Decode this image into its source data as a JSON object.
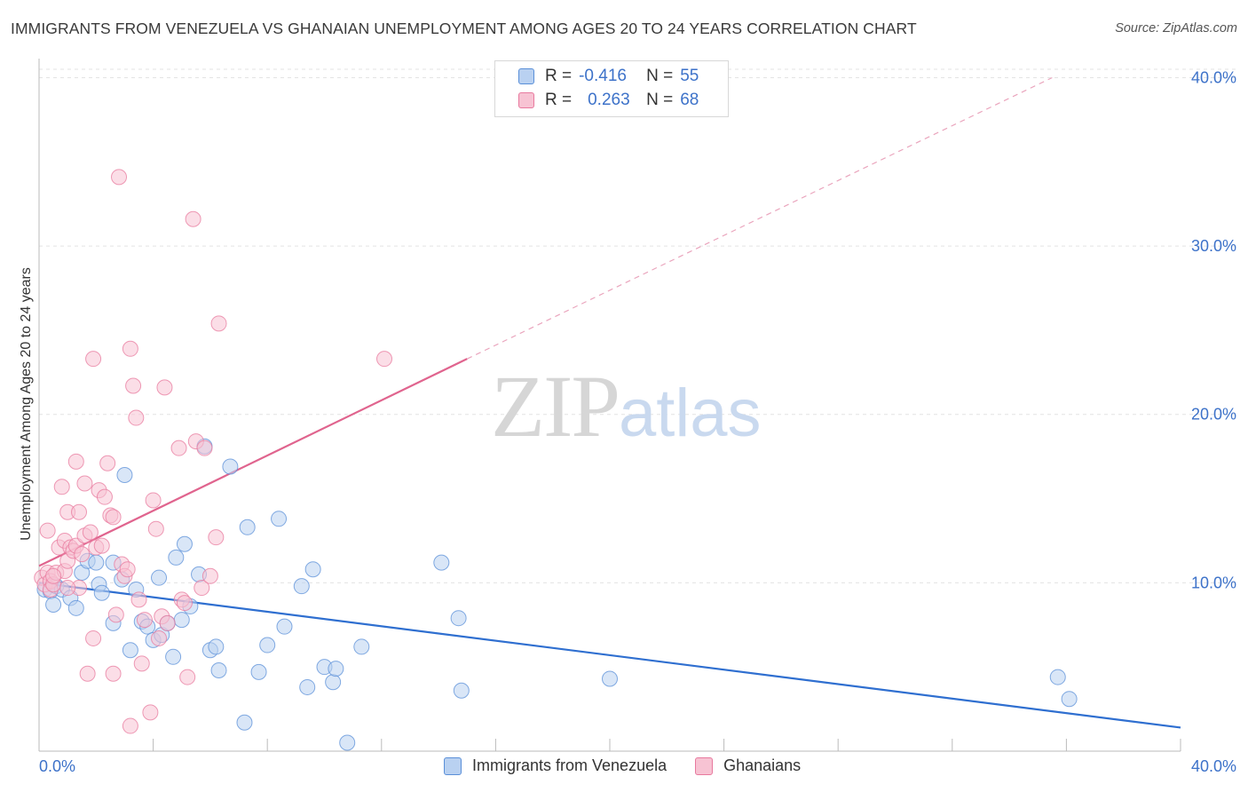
{
  "title": "IMMIGRANTS FROM VENEZUELA VS GHANAIAN UNEMPLOYMENT AMONG AGES 20 TO 24 YEARS CORRELATION CHART",
  "source": "Source: ZipAtlas.com",
  "watermark": {
    "zip": "ZIP",
    "atlas": "atlas"
  },
  "legend": {
    "rows": [
      {
        "r_label": "R =",
        "r_value": "-0.416",
        "n_label": "N =",
        "n_value": "55"
      },
      {
        "r_label": "R =",
        "r_value": "0.263",
        "n_label": "N =",
        "n_value": "68"
      }
    ]
  },
  "colors": {
    "blue": "#5a8fd8",
    "blue_fill": "#b9d1f1",
    "pink": "#e8799e",
    "pink_fill": "#f7c3d3",
    "blue_line": "#2f6fd0",
    "pink_line": "#e0648e",
    "tick_text": "#3d72c9"
  },
  "chart_data": {
    "type": "scatter",
    "title": "IMMIGRANTS FROM VENEZUELA VS GHANAIAN UNEMPLOYMENT AMONG AGES 20 TO 24 YEARS CORRELATION CHART",
    "xlabel": "",
    "ylabel": "Unemployment Among Ages 20 to 24 years",
    "xlim": [
      0,
      40
    ],
    "ylim": [
      0,
      40.5
    ],
    "x_tick_labels": [
      "0.0%",
      "40.0%"
    ],
    "y_tick_labels": [
      "10.0%",
      "20.0%",
      "30.0%",
      "40.0%"
    ],
    "y_ticks": [
      10,
      20,
      30,
      40
    ],
    "grid": true,
    "legend_position": "top-center",
    "series": [
      {
        "name": "Immigrants from Venezuela",
        "color": "#5a8fd8",
        "trend": {
          "x0": 0,
          "y0": 10.0,
          "x1": 40,
          "y1": 1.4
        },
        "points": [
          [
            0.2,
            9.6
          ],
          [
            0.4,
            9.5
          ],
          [
            0.5,
            8.7
          ],
          [
            0.6,
            9.8
          ],
          [
            0.8,
            9.6
          ],
          [
            1.1,
            9.1
          ],
          [
            1.3,
            8.5
          ],
          [
            1.5,
            10.6
          ],
          [
            1.7,
            11.3
          ],
          [
            2.0,
            11.2
          ],
          [
            2.1,
            9.9
          ],
          [
            2.2,
            9.4
          ],
          [
            2.6,
            11.2
          ],
          [
            2.6,
            7.6
          ],
          [
            2.9,
            10.2
          ],
          [
            3.0,
            16.4
          ],
          [
            3.2,
            6.0
          ],
          [
            3.4,
            9.6
          ],
          [
            3.6,
            7.7
          ],
          [
            3.8,
            7.4
          ],
          [
            4.0,
            6.6
          ],
          [
            4.2,
            10.3
          ],
          [
            4.3,
            6.9
          ],
          [
            4.5,
            7.6
          ],
          [
            4.7,
            5.6
          ],
          [
            4.8,
            11.5
          ],
          [
            5.0,
            7.8
          ],
          [
            5.1,
            12.3
          ],
          [
            5.3,
            8.6
          ],
          [
            5.6,
            10.5
          ],
          [
            5.8,
            18.1
          ],
          [
            6.0,
            6.0
          ],
          [
            6.2,
            6.2
          ],
          [
            6.3,
            4.8
          ],
          [
            6.7,
            16.9
          ],
          [
            7.2,
            1.7
          ],
          [
            7.3,
            13.3
          ],
          [
            7.7,
            4.7
          ],
          [
            8.0,
            6.3
          ],
          [
            8.4,
            13.8
          ],
          [
            8.6,
            7.4
          ],
          [
            9.2,
            9.8
          ],
          [
            9.4,
            3.8
          ],
          [
            9.6,
            10.8
          ],
          [
            10.0,
            5.0
          ],
          [
            10.3,
            4.1
          ],
          [
            10.4,
            4.9
          ],
          [
            10.8,
            0.5
          ],
          [
            11.3,
            6.2
          ],
          [
            14.1,
            11.2
          ],
          [
            14.7,
            7.9
          ],
          [
            14.8,
            3.6
          ],
          [
            20.0,
            4.3
          ],
          [
            35.7,
            4.4
          ],
          [
            36.1,
            3.1
          ]
        ]
      },
      {
        "name": "Ghanaians",
        "color": "#e8799e",
        "trend": {
          "x0": 0,
          "y0": 11.0,
          "x1": 15.0,
          "y1": 23.3,
          "dash_x1": 35.5,
          "dash_y1": 40.0
        },
        "points": [
          [
            0.1,
            10.3
          ],
          [
            0.2,
            9.9
          ],
          [
            0.3,
            13.1
          ],
          [
            0.3,
            10.6
          ],
          [
            0.4,
            10.1
          ],
          [
            0.4,
            9.6
          ],
          [
            0.5,
            9.9
          ],
          [
            0.6,
            10.6
          ],
          [
            0.7,
            12.1
          ],
          [
            0.8,
            15.7
          ],
          [
            0.9,
            10.7
          ],
          [
            0.9,
            12.5
          ],
          [
            1.0,
            11.3
          ],
          [
            1.0,
            14.2
          ],
          [
            1.1,
            12.1
          ],
          [
            1.2,
            11.9
          ],
          [
            1.3,
            12.2
          ],
          [
            1.3,
            17.2
          ],
          [
            1.4,
            14.2
          ],
          [
            1.4,
            9.7
          ],
          [
            1.5,
            11.7
          ],
          [
            1.6,
            12.8
          ],
          [
            1.6,
            15.9
          ],
          [
            1.7,
            4.6
          ],
          [
            1.8,
            13.0
          ],
          [
            1.9,
            23.3
          ],
          [
            1.9,
            6.7
          ],
          [
            2.0,
            12.1
          ],
          [
            2.1,
            15.5
          ],
          [
            2.2,
            12.2
          ],
          [
            2.3,
            15.1
          ],
          [
            2.4,
            17.1
          ],
          [
            2.5,
            14.0
          ],
          [
            2.6,
            13.9
          ],
          [
            2.6,
            4.6
          ],
          [
            2.7,
            8.1
          ],
          [
            2.8,
            34.1
          ],
          [
            2.9,
            11.1
          ],
          [
            3.0,
            10.4
          ],
          [
            3.1,
            10.8
          ],
          [
            3.2,
            23.9
          ],
          [
            3.2,
            1.5
          ],
          [
            3.3,
            21.7
          ],
          [
            3.4,
            19.8
          ],
          [
            3.5,
            9.0
          ],
          [
            3.6,
            5.2
          ],
          [
            3.7,
            7.8
          ],
          [
            3.9,
            2.3
          ],
          [
            4.0,
            14.9
          ],
          [
            4.1,
            13.2
          ],
          [
            4.2,
            6.7
          ],
          [
            4.3,
            8.0
          ],
          [
            4.4,
            21.6
          ],
          [
            4.5,
            7.6
          ],
          [
            4.9,
            18.0
          ],
          [
            5.0,
            9.0
          ],
          [
            5.1,
            8.8
          ],
          [
            5.2,
            4.4
          ],
          [
            5.4,
            31.6
          ],
          [
            5.5,
            18.4
          ],
          [
            5.7,
            9.7
          ],
          [
            5.8,
            18.0
          ],
          [
            6.0,
            10.4
          ],
          [
            6.2,
            12.7
          ],
          [
            6.3,
            25.4
          ],
          [
            12.1,
            23.3
          ],
          [
            0.5,
            10.4
          ],
          [
            1.0,
            9.7
          ]
        ]
      }
    ]
  },
  "bottom_legend": [
    "Immigrants from Venezuela",
    "Ghanaians"
  ]
}
